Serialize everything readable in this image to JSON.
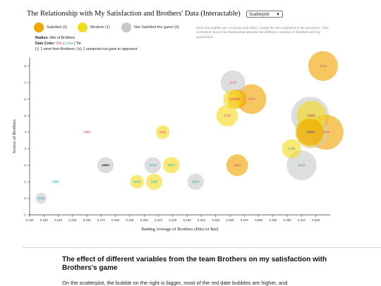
{
  "title": "The Relationship with My Satisfaction and Brothers' Data (Interactable)",
  "view_select": {
    "value": "Scatterplot"
  },
  "legend": [
    {
      "label": "Satisfied (2)",
      "color": "#f0a500"
    },
    {
      "label": "Medium (1)",
      "color": "#f3db20"
    },
    {
      "label": "Not Satisfied the game (0)",
      "color": "#c9c9c9"
    }
  ],
  "note": "Since the bubbles are covering each other, I made the the scatterplot to be interactive. This scatterplot shows the relationship between the different variables of Brothers and my satisfaction.",
  "key": {
    "radius_label": "Radius:",
    "radius_value": "Hits of Brothers",
    "date_color_label": "Date Color:",
    "win": "Win",
    "sep1": " | ",
    "loss": "Loss",
    "sep2": " | ",
    "tie": "Tie",
    "markers": "[-]: 1 error from Brothers / [•]: 1 unearned run gave to opponent"
  },
  "colors": {
    "win": "#e8417a",
    "loss": "#1aa3b0",
    "tie": "#222222"
  },
  "chart_data": {
    "type": "scatter",
    "xlabel": "Batting Average of Brothers (Hits/At Bat)",
    "ylabel": "Scores of Brothers",
    "xlim": [
      0.12,
      0.33
    ],
    "ylim": [
      -1,
      8.5
    ],
    "xticks": [
      0.12,
      0.13,
      0.14,
      0.15,
      0.16,
      0.17,
      0.18,
      0.19,
      0.2,
      0.21,
      0.22,
      0.23,
      0.24,
      0.25,
      0.26,
      0.27,
      0.28,
      0.29,
      0.3,
      0.31,
      0.32
    ],
    "xtick_labels": [
      "0.120",
      "0.130",
      "0.140",
      "0.150",
      "0.160",
      "0.170",
      "0.180",
      "0.190",
      "0.200",
      "0.210",
      "0.220",
      "0.230",
      "0.240",
      "0.250",
      "0.260",
      "0.270",
      "0.280",
      "0.290",
      "0.300",
      "0.310",
      "0.320"
    ],
    "yticks": [
      -1,
      0,
      1,
      2,
      3,
      4,
      5,
      6,
      7,
      8
    ],
    "ytick_labels": [
      "-1",
      "0",
      "1",
      "2",
      "3",
      "4",
      "5",
      "6",
      "7",
      "8"
    ],
    "points": [
      {
        "date": "11/13",
        "x": 0.325,
        "y": 8,
        "hits": 9,
        "satisfaction": 2,
        "result": "win"
      },
      {
        "date": "11/28",
        "x": 0.262,
        "y": 7,
        "hits": 7,
        "satisfaction": 0,
        "result": "win"
      },
      {
        "date": "10/14",
        "x": 0.275,
        "y": 6,
        "hits": 9,
        "satisfaction": 2,
        "result": "win"
      },
      {
        "date": "10/30",
        "x": 0.265,
        "y": 6,
        "hits": 5,
        "satisfaction": 2,
        "result": "win"
      },
      {
        "date": "10/21",
        "x": 0.262,
        "y": 6,
        "hits": 5,
        "satisfaction": 1,
        "result": "win"
      },
      {
        "date": "11/29",
        "x": 0.258,
        "y": 5,
        "hits": 6,
        "satisfaction": 1,
        "result": "win"
      },
      {
        "date": "11/28",
        "x": 0.316,
        "y": 5,
        "hits": 12,
        "satisfaction": 0,
        "result": "win"
      },
      {
        "date": "10/09",
        "x": 0.317,
        "y": 5,
        "hits": 9,
        "satisfaction": 1,
        "result": "win"
      },
      {
        "date": "11/19",
        "x": 0.327,
        "y": 4,
        "hits": 11,
        "satisfaction": 2,
        "result": "win"
      },
      {
        "date": "11/21",
        "x": 0.317,
        "y": 4,
        "hits": 10,
        "satisfaction": 0,
        "result": "win"
      },
      {
        "date": "10/30",
        "x": 0.316,
        "y": 4,
        "hits": 9,
        "satisfaction": 1,
        "result": "win"
      },
      {
        "date": "10/22",
        "x": 0.316,
        "y": 4,
        "hits": 8,
        "satisfaction": 2,
        "result": "loss"
      },
      {
        "date": "11/06",
        "x": 0.303,
        "y": 3,
        "hits": 5,
        "satisfaction": 1,
        "result": "loss"
      },
      {
        "date": "11/12",
        "x": 0.31,
        "y": 2,
        "hits": 9,
        "satisfaction": 0,
        "result": "loss"
      },
      {
        "date": "10/21",
        "x": 0.265,
        "y": 2,
        "hits": 6,
        "satisfaction": 2,
        "result": "win"
      },
      {
        "date": "10/11",
        "x": 0.213,
        "y": 4,
        "hits": 3,
        "satisfaction": 1,
        "result": "win"
      },
      {
        "date": "10/03",
        "x": 0.16,
        "y": 4,
        "hits": 0,
        "satisfaction": 0,
        "result": "win"
      },
      {
        "date": "10/24",
        "x": 0.173,
        "y": 2,
        "hits": 4,
        "satisfaction": 0,
        "result": "tie"
      },
      {
        "date": "11/15",
        "x": 0.206,
        "y": 2,
        "hits": 4,
        "satisfaction": 0,
        "result": "loss"
      },
      {
        "date": "10/27",
        "x": 0.219,
        "y": 2,
        "hits": 4,
        "satisfaction": 1,
        "result": "loss"
      },
      {
        "date": "11/03",
        "x": 0.195,
        "y": 1,
        "hits": 3,
        "satisfaction": 1,
        "result": "loss"
      },
      {
        "date": "11/03",
        "x": 0.207,
        "y": 1,
        "hits": 4,
        "satisfaction": 1,
        "result": "loss"
      },
      {
        "date": "10/14",
        "x": 0.236,
        "y": 1,
        "hits": 4,
        "satisfaction": 0,
        "result": "loss"
      },
      {
        "date": "11/04",
        "x": 0.138,
        "y": 1,
        "hits": 0,
        "satisfaction": 0,
        "result": "loss"
      },
      {
        "date": "11/16",
        "x": 0.128,
        "y": 0,
        "hits": 2,
        "satisfaction": 0,
        "result": "loss"
      }
    ]
  },
  "article": {
    "heading": "The effect of different variables from the team Brothers on my satisfaction with Brothers's game",
    "text": "On the scatterplot, the bubble on the right is bigger, most of the red date bubbles are higher, and"
  }
}
